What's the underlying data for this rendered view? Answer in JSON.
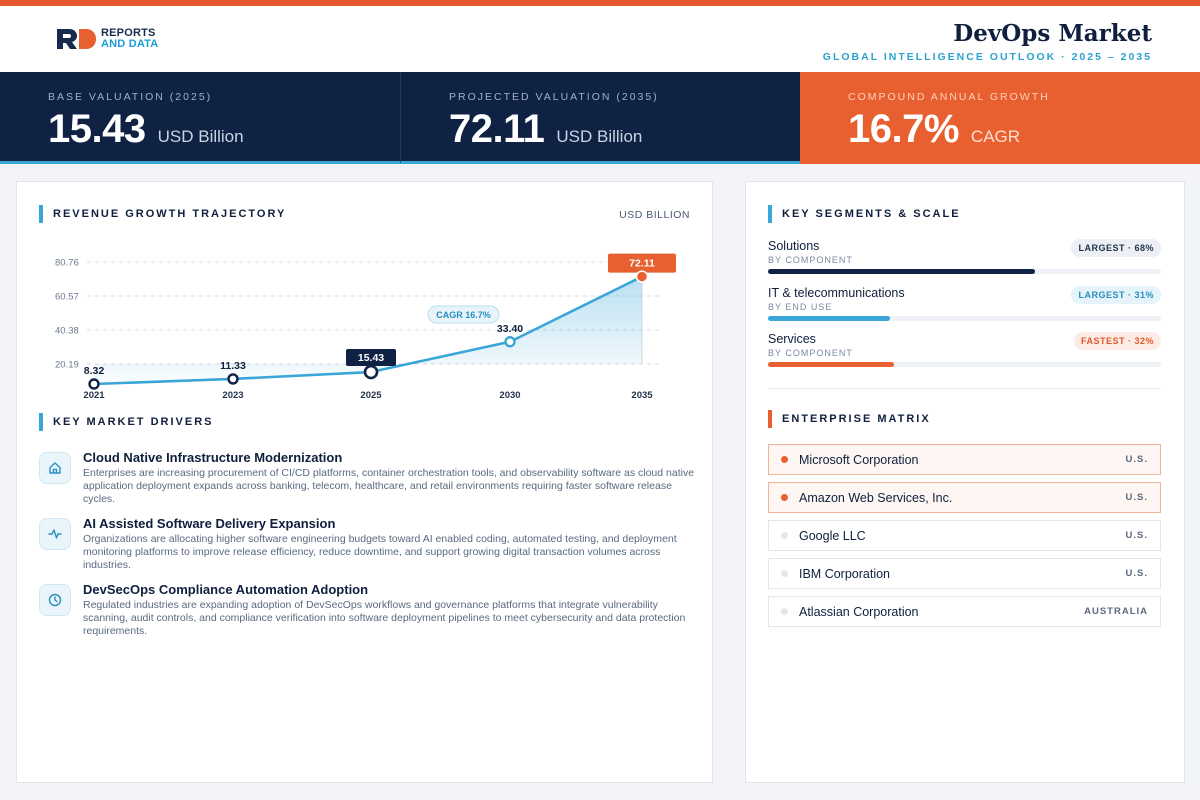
{
  "header": {
    "logo_line1": "REPORTS",
    "logo_line2": "AND DATA",
    "title": "DevOps Market",
    "subtitle": "GLOBAL INTELLIGENCE OUTLOOK  ·  2025 – 2035"
  },
  "kpis": [
    {
      "label": "BASE VALUATION (2025)",
      "value": "15.43",
      "unit": "USD Billion"
    },
    {
      "label": "PROJECTED VALUATION (2035)",
      "value": "72.11",
      "unit": "USD Billion"
    },
    {
      "label": "COMPOUND ANNUAL GROWTH",
      "value": "16.7%",
      "unit": "CAGR"
    }
  ],
  "colors": {
    "navy": "#0f2244",
    "accent_orange": "#e8602f",
    "accent_blue": "#3aa6d8"
  },
  "revenue": {
    "title": "REVENUE GROWTH TRAJECTORY",
    "unit": "USD BILLION",
    "cagr_label": "CAGR 16.7%"
  },
  "chart_data": {
    "type": "area",
    "x": [
      "2021",
      "2023",
      "2025",
      "2030",
      "2035"
    ],
    "values": [
      8.32,
      11.33,
      15.43,
      33.4,
      72.11
    ],
    "value_labels": [
      "8.32",
      "11.33",
      "15.43",
      "33.40",
      "72.11"
    ],
    "y_ticks": [
      "20.19",
      "40.38",
      "60.57",
      "80.76"
    ],
    "y_tick_values": [
      20.19,
      40.38,
      60.57,
      80.76
    ],
    "grid": true,
    "highlight": {
      "base_index": 2,
      "final_index": 4
    }
  },
  "drivers": {
    "title": "KEY MARKET DRIVERS",
    "items": [
      {
        "icon": "home-icon",
        "title": "Cloud Native Infrastructure Modernization",
        "desc": "Enterprises are increasing procurement of CI/CD platforms, container orchestration tools, and observability software as cloud native application deployment expands across banking, telecom, healthcare, and retail environments requiring faster software release cycles."
      },
      {
        "icon": "activity-icon",
        "title": "AI Assisted Software Delivery Expansion",
        "desc": "Organizations are allocating higher software engineering budgets toward AI enabled coding, automated testing, and deployment monitoring platforms to improve release efficiency, reduce downtime, and support growing digital transaction volumes across industries."
      },
      {
        "icon": "clock-icon",
        "title": "DevSecOps Compliance Automation Adoption",
        "desc": "Regulated industries are expanding adoption of DevSecOps workflows and governance platforms that integrate vulnerability scanning, audit controls, and compliance verification into software deployment pipelines to meet cybersecurity and data protection requirements."
      }
    ]
  },
  "segments": {
    "title": "KEY SEGMENTS & SCALE",
    "items": [
      {
        "name": "Solutions",
        "sub": "BY COMPONENT",
        "badge": "LARGEST · 68%",
        "share": 0.68,
        "color": "#0f2244",
        "badge_bg": "#eceff3",
        "badge_fg": "#24334d"
      },
      {
        "name": "IT & telecommunications",
        "sub": "BY END USE",
        "badge": "LARGEST · 31%",
        "share": 0.31,
        "color": "#3aa6d8",
        "badge_bg": "#e5f3fa",
        "badge_fg": "#2a8fc0"
      },
      {
        "name": "Services",
        "sub": "BY COMPONENT",
        "badge": "FASTEST · 32%",
        "share": 0.32,
        "color": "#e8602f",
        "badge_bg": "#fdece5",
        "badge_fg": "#e0582a"
      }
    ]
  },
  "matrix": {
    "title": "ENTERPRISE MATRIX",
    "items": [
      {
        "name": "Microsoft Corporation",
        "country": "U.S.",
        "highlight": true
      },
      {
        "name": "Amazon Web Services, Inc.",
        "country": "U.S.",
        "highlight": true
      },
      {
        "name": "Google LLC",
        "country": "U.S.",
        "highlight": false
      },
      {
        "name": "IBM Corporation",
        "country": "U.S.",
        "highlight": false
      },
      {
        "name": "Atlassian Corporation",
        "country": "AUSTRALIA",
        "highlight": false
      }
    ]
  }
}
